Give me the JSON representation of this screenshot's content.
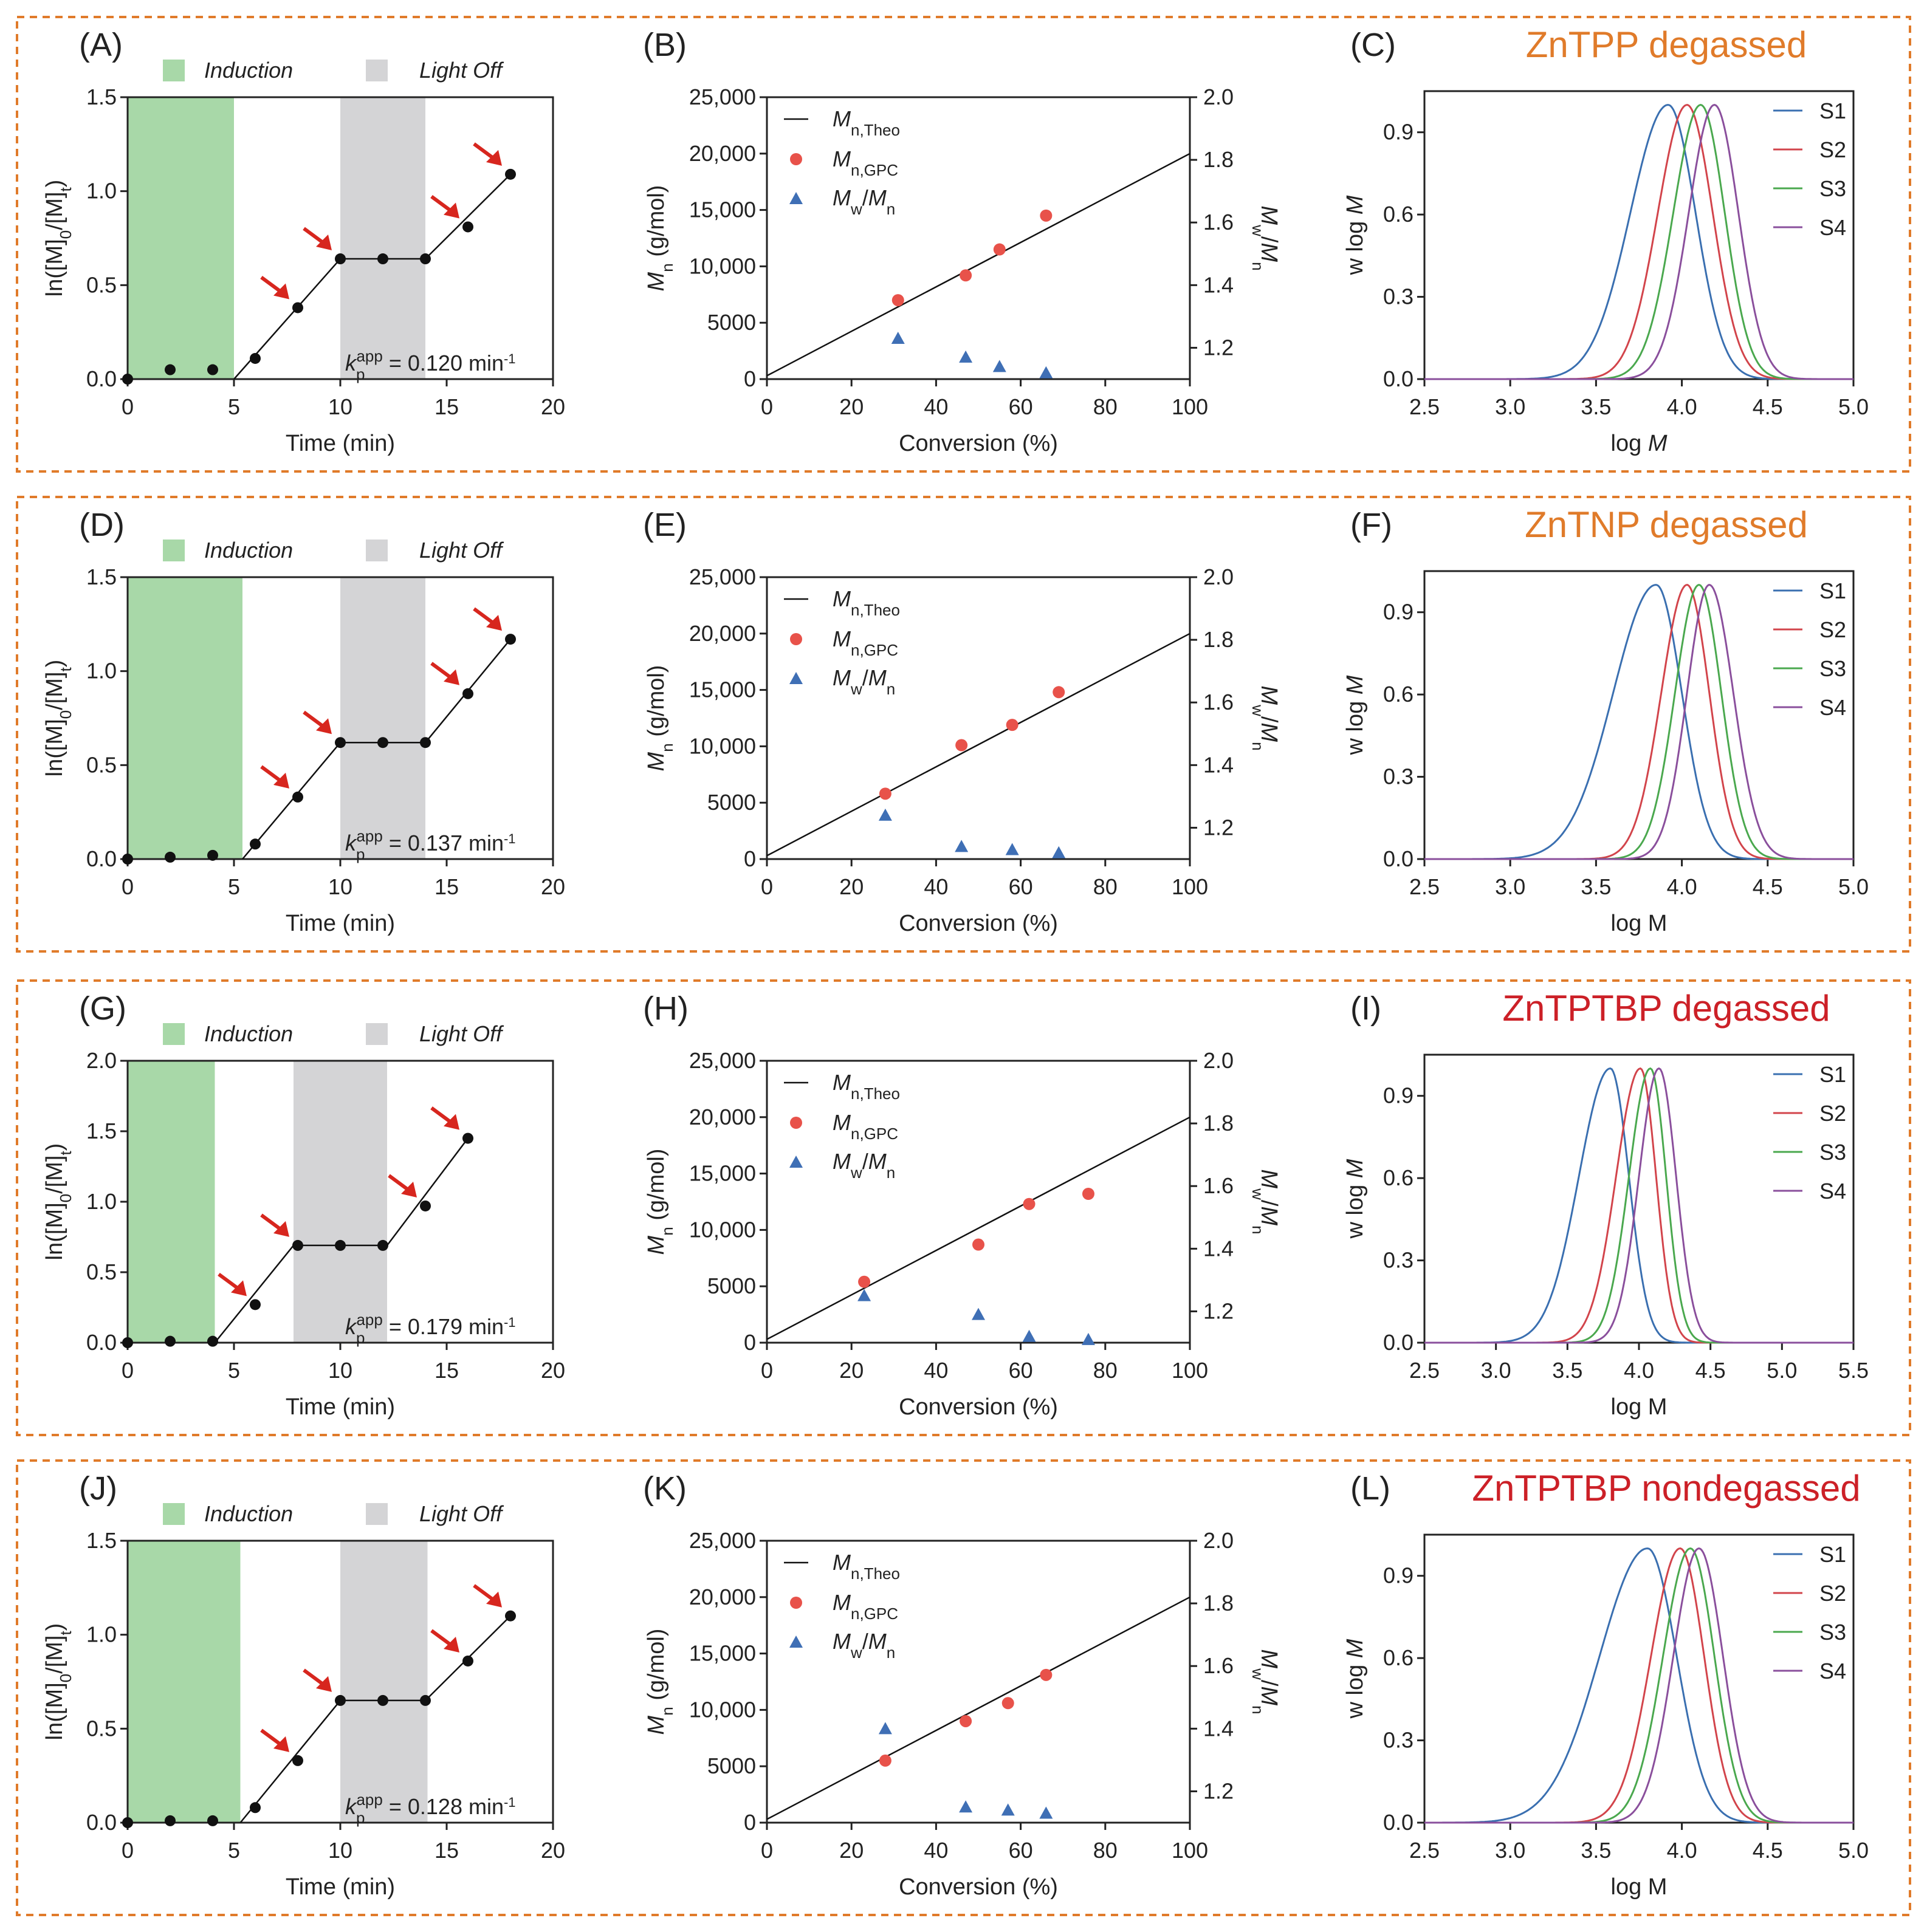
{
  "figure": {
    "rows": [
      {
        "kinetics": {
          "label": "(A)",
          "legend": {
            "induction": "Induction",
            "light_off": "Light Off"
          },
          "ylabel": "ln([M]0/[M]t)",
          "xlabel": "Time (min)",
          "k_text": "kp app = 0.120 min-1",
          "k_value": "0.120"
        },
        "mn": {
          "label": "(B)",
          "xlabel": "Conversion (%)",
          "ylabel": "Mn (g/mol)",
          "y2label": "Mw/Mn",
          "legend": {
            "theo": "Mn,Theo",
            "gpc": "Mn,GPC",
            "disp": "Mw/Mn"
          }
        },
        "gpc": {
          "label": "(C)",
          "title": "ZnTPP  degassed",
          "title_color": "#e07b2a",
          "xlabel": "log M",
          "xlabel_italic": true,
          "ylabel": "w log M"
        }
      },
      {
        "kinetics": {
          "label": "(D)",
          "legend": {
            "induction": "Induction",
            "light_off": "Light Off"
          },
          "ylabel": "ln([M]0/[M]t)",
          "xlabel": "Time (min)",
          "k_text": "kp app = 0.137 min-1",
          "k_value": "0.137"
        },
        "mn": {
          "label": "(E)",
          "xlabel": "Conversion (%)",
          "ylabel": "Mn (g/mol)",
          "y2label": "Mw/Mn",
          "legend": {
            "theo": "Mn,Theo",
            "gpc": "Mn,GPC",
            "disp": "Mw/Mn"
          }
        },
        "gpc": {
          "label": "(F)",
          "title": "ZnTNP  degassed",
          "title_color": "#e07b2a",
          "xlabel": "log M",
          "xlabel_italic": false,
          "ylabel": "w log M"
        }
      },
      {
        "kinetics": {
          "label": "(G)",
          "legend": {
            "induction": "Induction",
            "light_off": "Light Off"
          },
          "ylabel": "ln([M]0/[M]t)",
          "xlabel": "Time (min)",
          "k_text": "kp app = 0.179 min-1",
          "k_value": "0.179"
        },
        "mn": {
          "label": "(H)",
          "xlabel": "Conversion (%)",
          "ylabel": "Mn (g/mol)",
          "y2label": "Mw/Mn",
          "legend": {
            "theo": "Mn,Theo",
            "gpc": "Mn,GPC",
            "disp": "Mw/Mn"
          }
        },
        "gpc": {
          "label": "(I)",
          "title": "ZnTPTBP  degassed",
          "title_color": "#cc2027",
          "xlabel": "log M",
          "xlabel_italic": false,
          "ylabel": "w log M"
        }
      },
      {
        "kinetics": {
          "label": "(J)",
          "legend": {
            "induction": "Induction",
            "light_off": "Light Off"
          },
          "ylabel": "ln([M]0/[M]t)",
          "xlabel": "Time (min)",
          "k_text": "kp app = 0.128 min-1",
          "k_value": "0.128"
        },
        "mn": {
          "label": "(K)",
          "xlabel": "Conversion (%)",
          "ylabel": "Mn (g/mol)",
          "y2label": "Mw/Mn",
          "legend": {
            "theo": "Mn,Theo",
            "gpc": "Mn,GPC",
            "disp": "Mw/Mn"
          }
        },
        "gpc": {
          "label": "(L)",
          "title": "ZnTPTBP nondegassed",
          "title_color": "#cc2027",
          "xlabel": "log M",
          "xlabel_italic": false,
          "ylabel": "w log M"
        }
      }
    ]
  },
  "colors": {
    "panel_border": "#e07b2a",
    "induction_fill": "#a8d8a8",
    "lightoff_fill": "#d4d4d6",
    "arrow": "#d7261e",
    "gpc_point": "#e8524a",
    "disp_point": "#3f6fb5",
    "S1": "#3a6fb0",
    "S2": "#d2444b",
    "S3": "#4aa84e",
    "S4": "#8a4f9c"
  },
  "chart_data": [
    {
      "type": "scatter",
      "panel": "(A)",
      "title": "",
      "xlabel": "Time (min)",
      "ylabel": "ln([M]0/[M]t)",
      "xlim": [
        0,
        20
      ],
      "ylim": [
        0,
        1.5
      ],
      "xticks": [
        "0",
        "5",
        "10",
        "15",
        "20"
      ],
      "yticks": [
        "0.0",
        "0.5",
        "1.0",
        "1.5"
      ],
      "induction": [
        0,
        5
      ],
      "light_off": [
        10,
        14
      ],
      "x": [
        0,
        2,
        4,
        6,
        8,
        10,
        12,
        14,
        16,
        18
      ],
      "y": [
        0,
        0.05,
        0.05,
        0.11,
        0.38,
        0.64,
        0.64,
        0.64,
        0.81,
        1.09
      ],
      "arrows_at": [
        8,
        10,
        16,
        18
      ],
      "fit_lines": [
        [
          [
            5,
            0
          ],
          [
            10,
            0.64
          ]
        ],
        [
          [
            10,
            0.64
          ],
          [
            14,
            0.64
          ]
        ],
        [
          [
            14,
            0.64
          ],
          [
            18,
            1.09
          ]
        ]
      ],
      "legend": [
        "Induction",
        "Light Off"
      ]
    },
    {
      "type": "scatter",
      "panel": "(B)",
      "xlabel": "Conversion (%)",
      "ylabel": "Mn (g/mol)",
      "y2label": "Mw/Mn",
      "xlim": [
        0,
        100
      ],
      "ylim": [
        0,
        25000
      ],
      "y2lim": [
        1.1,
        2.0
      ],
      "xticks": [
        "0",
        "20",
        "40",
        "60",
        "80",
        "100"
      ],
      "yticks": [
        "0",
        "5000",
        "10,000",
        "15,000",
        "20,000",
        "25,000"
      ],
      "y2ticks": [
        "1.2",
        "1.4",
        "1.6",
        "1.8",
        "2.0"
      ],
      "theo_line": [
        [
          0,
          300
        ],
        [
          100,
          20000
        ]
      ],
      "series": [
        {
          "name": "Mn,GPC",
          "x": [
            31,
            47,
            55,
            66
          ],
          "values": [
            7000,
            9200,
            11500,
            14500
          ]
        },
        {
          "name": "Mw/Mn",
          "x": [
            31,
            47,
            55,
            66
          ],
          "values": [
            1.23,
            1.17,
            1.14,
            1.12
          ]
        }
      ],
      "legend": [
        "Mn,Theo",
        "Mn,GPC",
        "Mw/Mn"
      ]
    },
    {
      "type": "line",
      "panel": "(C)",
      "title": "ZnTPP  degassed",
      "xlabel": "log M",
      "ylabel": "w log M",
      "xlim": [
        2.5,
        5.0
      ],
      "ylim": [
        0,
        1.05
      ],
      "xticks": [
        "2.5",
        "3.0",
        "3.5",
        "4.0",
        "4.5",
        "5.0"
      ],
      "yticks": [
        "0.0",
        "0.3",
        "0.6",
        "0.9"
      ],
      "series": [
        {
          "name": "S1",
          "peak": 3.92,
          "sigma_left": 0.22,
          "sigma_right": 0.16
        },
        {
          "name": "S2",
          "peak": 4.03,
          "sigma_left": 0.17,
          "sigma_right": 0.15
        },
        {
          "name": "S3",
          "peak": 4.11,
          "sigma_left": 0.16,
          "sigma_right": 0.14
        },
        {
          "name": "S4",
          "peak": 4.19,
          "sigma_left": 0.15,
          "sigma_right": 0.14
        }
      ],
      "legend": [
        "S1",
        "S2",
        "S3",
        "S4"
      ]
    },
    {
      "type": "scatter",
      "panel": "(D)",
      "xlabel": "Time (min)",
      "ylabel": "ln([M]0/[M]t)",
      "xlim": [
        0,
        20
      ],
      "ylim": [
        0,
        1.5
      ],
      "xticks": [
        "0",
        "5",
        "10",
        "15",
        "20"
      ],
      "yticks": [
        "0.0",
        "0.5",
        "1.0",
        "1.5"
      ],
      "induction": [
        0,
        5.4
      ],
      "light_off": [
        10,
        14
      ],
      "x": [
        0,
        2,
        4,
        6,
        8,
        10,
        12,
        14,
        16,
        18
      ],
      "y": [
        0,
        0.01,
        0.02,
        0.08,
        0.33,
        0.62,
        0.62,
        0.62,
        0.88,
        1.17
      ],
      "arrows_at": [
        8,
        10,
        16,
        18
      ],
      "fit_lines": [
        [
          [
            5.4,
            0
          ],
          [
            10,
            0.62
          ]
        ],
        [
          [
            10,
            0.62
          ],
          [
            14,
            0.62
          ]
        ],
        [
          [
            14,
            0.62
          ],
          [
            18,
            1.17
          ]
        ]
      ],
      "legend": [
        "Induction",
        "Light Off"
      ]
    },
    {
      "type": "scatter",
      "panel": "(E)",
      "xlabel": "Conversion (%)",
      "ylabel": "Mn (g/mol)",
      "y2label": "Mw/Mn",
      "xlim": [
        0,
        100
      ],
      "ylim": [
        0,
        25000
      ],
      "y2lim": [
        1.1,
        2.0
      ],
      "xticks": [
        "0",
        "20",
        "40",
        "60",
        "80",
        "100"
      ],
      "yticks": [
        "0",
        "5000",
        "10,000",
        "15,000",
        "20,000",
        "25,000"
      ],
      "y2ticks": [
        "1.2",
        "1.4",
        "1.6",
        "1.8",
        "2.0"
      ],
      "theo_line": [
        [
          0,
          300
        ],
        [
          100,
          20000
        ]
      ],
      "series": [
        {
          "name": "Mn,GPC",
          "x": [
            28,
            46,
            58,
            69
          ],
          "values": [
            5800,
            10100,
            11900,
            14800
          ]
        },
        {
          "name": "Mw/Mn",
          "x": [
            28,
            46,
            58,
            69
          ],
          "values": [
            1.24,
            1.14,
            1.13,
            1.12
          ]
        }
      ],
      "legend": [
        "Mn,Theo",
        "Mn,GPC",
        "Mw/Mn"
      ]
    },
    {
      "type": "line",
      "panel": "(F)",
      "title": "ZnTNP  degassed",
      "xlabel": "log M",
      "ylabel": "w log M",
      "xlim": [
        2.5,
        5.0
      ],
      "ylim": [
        0,
        1.05
      ],
      "xticks": [
        "2.5",
        "3.0",
        "3.5",
        "4.0",
        "4.5",
        "5.0"
      ],
      "yticks": [
        "0.0",
        "0.3",
        "0.6",
        "0.9"
      ],
      "series": [
        {
          "name": "S1",
          "peak": 3.85,
          "sigma_left": 0.25,
          "sigma_right": 0.15
        },
        {
          "name": "S2",
          "peak": 4.03,
          "sigma_left": 0.15,
          "sigma_right": 0.13
        },
        {
          "name": "S3",
          "peak": 4.1,
          "sigma_left": 0.14,
          "sigma_right": 0.13
        },
        {
          "name": "S4",
          "peak": 4.16,
          "sigma_left": 0.13,
          "sigma_right": 0.14
        }
      ],
      "legend": [
        "S1",
        "S2",
        "S3",
        "S4"
      ]
    },
    {
      "type": "scatter",
      "panel": "(G)",
      "xlabel": "Time (min)",
      "ylabel": "ln([M]0/[M]t)",
      "xlim": [
        0,
        20
      ],
      "ylim": [
        0,
        2.0
      ],
      "xticks": [
        "0",
        "5",
        "10",
        "15",
        "20"
      ],
      "yticks": [
        "0.0",
        "0.5",
        "1.0",
        "1.5",
        "2.0"
      ],
      "induction": [
        0,
        4.1
      ],
      "light_off": [
        7.8,
        12.2
      ],
      "x": [
        0,
        2,
        4,
        6,
        8,
        10,
        12,
        14,
        16
      ],
      "y": [
        0,
        0.01,
        0.01,
        0.27,
        0.69,
        0.69,
        0.69,
        0.97,
        1.45
      ],
      "arrows_at": [
        6,
        8,
        14,
        16
      ],
      "fit_lines": [
        [
          [
            4.1,
            0
          ],
          [
            7.8,
            0.69
          ]
        ],
        [
          [
            7.8,
            0.69
          ],
          [
            12.2,
            0.69
          ]
        ],
        [
          [
            12.2,
            0.69
          ],
          [
            16,
            1.45
          ]
        ]
      ],
      "legend": [
        "Induction",
        "Light Off"
      ]
    },
    {
      "type": "scatter",
      "panel": "(H)",
      "xlabel": "Conversion (%)",
      "ylabel": "Mn (g/mol)",
      "y2label": "Mw/Mn",
      "xlim": [
        0,
        100
      ],
      "ylim": [
        0,
        25000
      ],
      "y2lim": [
        1.1,
        2.0
      ],
      "xticks": [
        "0",
        "20",
        "40",
        "60",
        "80",
        "100"
      ],
      "yticks": [
        "0",
        "5000",
        "10,000",
        "15,000",
        "20,000",
        "25,000"
      ],
      "y2ticks": [
        "1.2",
        "1.4",
        "1.6",
        "1.8",
        "2.0"
      ],
      "theo_line": [
        [
          0,
          300
        ],
        [
          100,
          20000
        ]
      ],
      "series": [
        {
          "name": "Mn,GPC",
          "x": [
            23,
            50,
            62,
            76
          ],
          "values": [
            5400,
            8700,
            12300,
            13200
          ]
        },
        {
          "name": "Mw/Mn",
          "x": [
            23,
            50,
            62,
            76
          ],
          "values": [
            1.25,
            1.19,
            1.12,
            1.11
          ]
        }
      ],
      "legend": [
        "Mn,Theo",
        "Mn,GPC",
        "Mw/Mn"
      ]
    },
    {
      "type": "line",
      "panel": "(I)",
      "title": "ZnTPTBP  degassed",
      "xlabel": "log M",
      "ylabel": "w log M",
      "xlim": [
        2.5,
        5.5
      ],
      "ylim": [
        0,
        1.05
      ],
      "xticks": [
        "2.5",
        "3.0",
        "3.5",
        "4.0",
        "4.5",
        "5.0",
        "5.5"
      ],
      "yticks": [
        "0.0",
        "0.3",
        "0.6",
        "0.9"
      ],
      "series": [
        {
          "name": "S1",
          "peak": 3.8,
          "sigma_left": 0.22,
          "sigma_right": 0.13
        },
        {
          "name": "S2",
          "peak": 4.01,
          "sigma_left": 0.17,
          "sigma_right": 0.11
        },
        {
          "name": "S3",
          "peak": 4.08,
          "sigma_left": 0.15,
          "sigma_right": 0.11
        },
        {
          "name": "S4",
          "peak": 4.14,
          "sigma_left": 0.14,
          "sigma_right": 0.12
        }
      ],
      "legend": [
        "S1",
        "S2",
        "S3",
        "S4"
      ]
    },
    {
      "type": "scatter",
      "panel": "(J)",
      "xlabel": "Time (min)",
      "ylabel": "ln([M]0/[M]t)",
      "xlim": [
        0,
        20
      ],
      "ylim": [
        0,
        1.5
      ],
      "xticks": [
        "0",
        "5",
        "10",
        "15",
        "20"
      ],
      "yticks": [
        "0.0",
        "0.5",
        "1.0",
        "1.5"
      ],
      "induction": [
        0,
        5.3
      ],
      "light_off": [
        10,
        14.1
      ],
      "x": [
        0,
        2,
        4,
        6,
        8,
        10,
        12,
        14,
        16,
        18
      ],
      "y": [
        0,
        0.01,
        0.01,
        0.08,
        0.33,
        0.65,
        0.65,
        0.65,
        0.86,
        1.1
      ],
      "arrows_at": [
        8,
        10,
        16,
        18
      ],
      "fit_lines": [
        [
          [
            5.3,
            0
          ],
          [
            10,
            0.65
          ]
        ],
        [
          [
            10,
            0.65
          ],
          [
            14,
            0.65
          ]
        ],
        [
          [
            14,
            0.65
          ],
          [
            18,
            1.1
          ]
        ]
      ],
      "legend": [
        "Induction",
        "Light Off"
      ]
    },
    {
      "type": "scatter",
      "panel": "(K)",
      "xlabel": "Conversion (%)",
      "ylabel": "Mn (g/mol)",
      "y2label": "Mw/Mn",
      "xlim": [
        0,
        100
      ],
      "ylim": [
        0,
        25000
      ],
      "y2lim": [
        1.1,
        2.0
      ],
      "xticks": [
        "0",
        "20",
        "40",
        "60",
        "80",
        "100"
      ],
      "yticks": [
        "0",
        "5000",
        "10,000",
        "15,000",
        "20,000",
        "25,000"
      ],
      "y2ticks": [
        "1.2",
        "1.4",
        "1.6",
        "1.8",
        "2.0"
      ],
      "theo_line": [
        [
          0,
          300
        ],
        [
          100,
          20000
        ]
      ],
      "series": [
        {
          "name": "Mn,GPC",
          "x": [
            28,
            47,
            57,
            66
          ],
          "values": [
            5500,
            9000,
            10600,
            13100
          ]
        },
        {
          "name": "Mw/Mn",
          "x": [
            28,
            47,
            57,
            66
          ],
          "values": [
            1.4,
            1.15,
            1.14,
            1.13
          ]
        }
      ],
      "legend": [
        "Mn,Theo",
        "Mn,GPC",
        "Mw/Mn"
      ]
    },
    {
      "type": "line",
      "panel": "(L)",
      "title": "ZnTPTBP nondegassed",
      "xlabel": "log M",
      "ylabel": "w log M",
      "xlim": [
        2.5,
        5.0
      ],
      "ylim": [
        0,
        1.05
      ],
      "xticks": [
        "2.5",
        "3.0",
        "3.5",
        "4.0",
        "4.5",
        "5.0"
      ],
      "yticks": [
        "0.0",
        "0.3",
        "0.6",
        "0.9"
      ],
      "series": [
        {
          "name": "S1",
          "peak": 3.8,
          "sigma_left": 0.28,
          "sigma_right": 0.17
        },
        {
          "name": "S2",
          "peak": 3.99,
          "sigma_left": 0.17,
          "sigma_right": 0.14
        },
        {
          "name": "S3",
          "peak": 4.05,
          "sigma_left": 0.16,
          "sigma_right": 0.14
        },
        {
          "name": "S4",
          "peak": 4.1,
          "sigma_left": 0.15,
          "sigma_right": 0.14
        }
      ],
      "legend": [
        "S1",
        "S2",
        "S3",
        "S4"
      ]
    }
  ]
}
